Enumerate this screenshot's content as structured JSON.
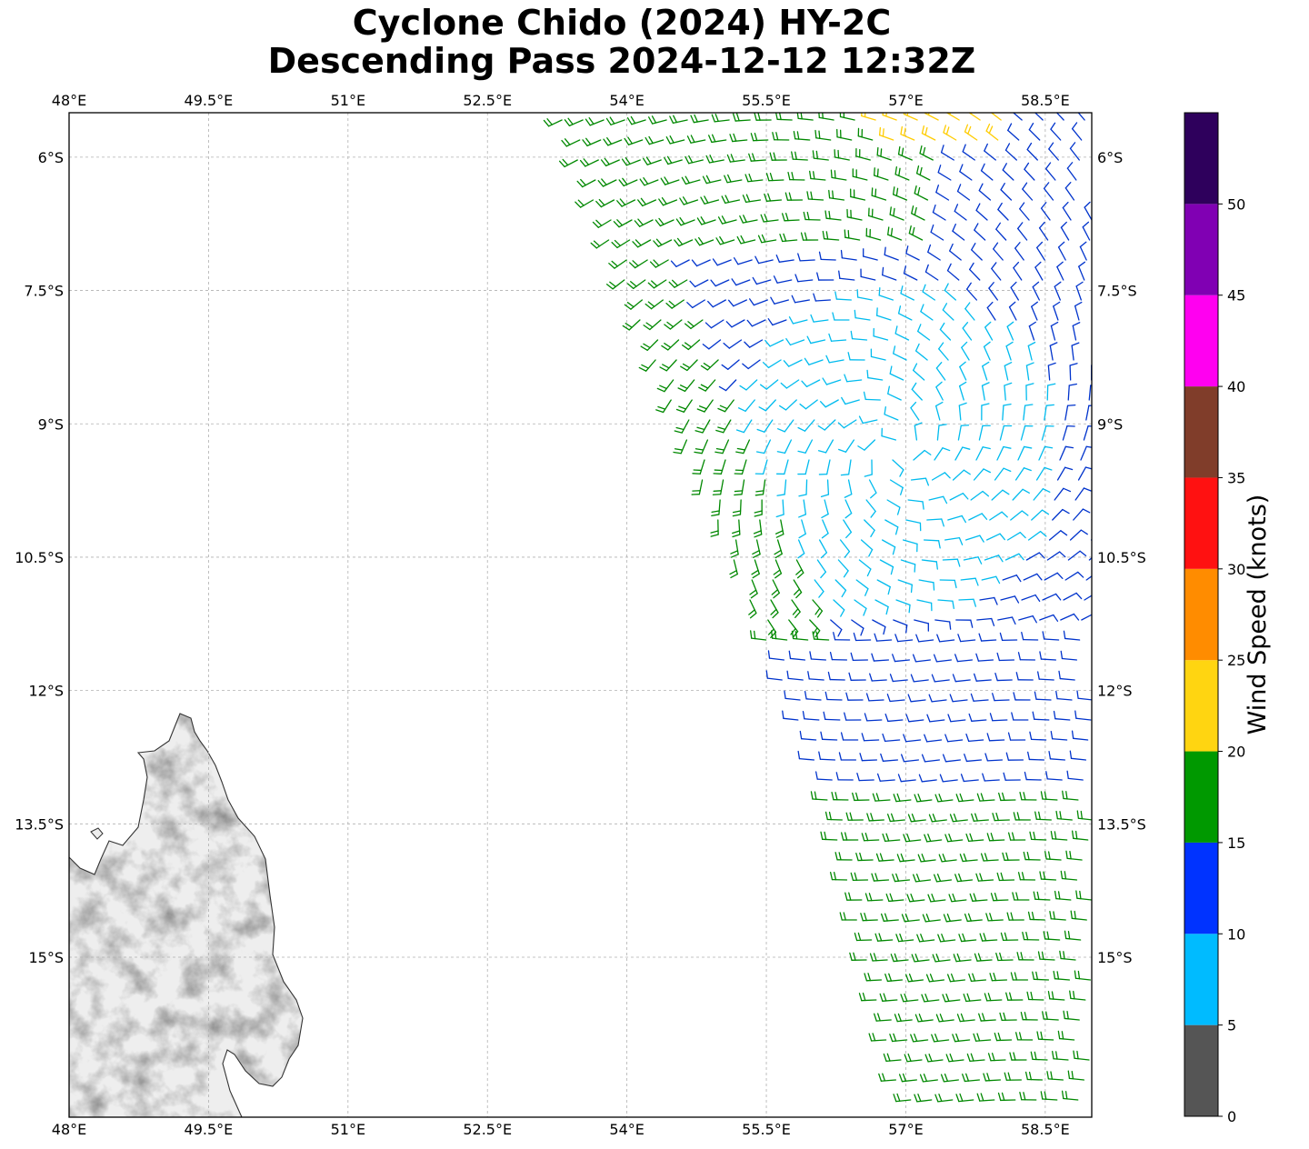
{
  "title": {
    "line1": "Cyclone Chido (2024) HY-2C",
    "line2": "Descending Pass 2024-12-12 12:32Z"
  },
  "map": {
    "extent": {
      "lon_min": 48.0,
      "lon_max": 59.0,
      "lat_min": -16.8,
      "lat_max": -5.5
    },
    "lon_ticks": [
      {
        "value": 48.0,
        "label": "48°E"
      },
      {
        "value": 49.5,
        "label": "49.5°E"
      },
      {
        "value": 51.0,
        "label": "51°E"
      },
      {
        "value": 52.5,
        "label": "52.5°E"
      },
      {
        "value": 54.0,
        "label": "54°E"
      },
      {
        "value": 55.5,
        "label": "55.5°E"
      },
      {
        "value": 57.0,
        "label": "57°E"
      },
      {
        "value": 58.5,
        "label": "58.5°E"
      }
    ],
    "lat_ticks": [
      {
        "value": -6.0,
        "label": "6°S"
      },
      {
        "value": -7.5,
        "label": "7.5°S"
      },
      {
        "value": -9.0,
        "label": "9°S"
      },
      {
        "value": -10.5,
        "label": "10.5°S"
      },
      {
        "value": -12.0,
        "label": "12°S"
      },
      {
        "value": -13.5,
        "label": "13.5°S"
      },
      {
        "value": -15.0,
        "label": "15°S"
      }
    ],
    "gridlines": true,
    "land": "Madagascar (northern tip), grey shaded terrain",
    "cyclone_center": {
      "lon": 56.9,
      "lat": -9.3
    }
  },
  "colorbar": {
    "label": "Wind Speed (knots)",
    "min": 0,
    "max": 55,
    "tick_labels": [
      "0",
      "5",
      "10",
      "15",
      "20",
      "25",
      "30",
      "35",
      "40",
      "45",
      "50"
    ],
    "bins": [
      {
        "from": 0,
        "to": 5,
        "color": "#555555"
      },
      {
        "from": 5,
        "to": 10,
        "color": "#00bbff"
      },
      {
        "from": 10,
        "to": 15,
        "color": "#0033ff"
      },
      {
        "from": 15,
        "to": 20,
        "color": "#009900"
      },
      {
        "from": 20,
        "to": 25,
        "color": "#ffd511"
      },
      {
        "from": 25,
        "to": 30,
        "color": "#ff8c00"
      },
      {
        "from": 30,
        "to": 35,
        "color": "#ff1111"
      },
      {
        "from": 35,
        "to": 40,
        "color": "#803d2a"
      },
      {
        "from": 40,
        "to": 45,
        "color": "#ff00f0"
      },
      {
        "from": 45,
        "to": 50,
        "color": "#8000b3"
      },
      {
        "from": 50,
        "to": 55,
        "color": "#2e005c"
      }
    ],
    "barb_colors": {
      "calm": "#555555",
      "light": "#00bbee",
      "moderate": "#0033cc",
      "fresh": "#008800",
      "strong": "#ffcc00"
    }
  }
}
